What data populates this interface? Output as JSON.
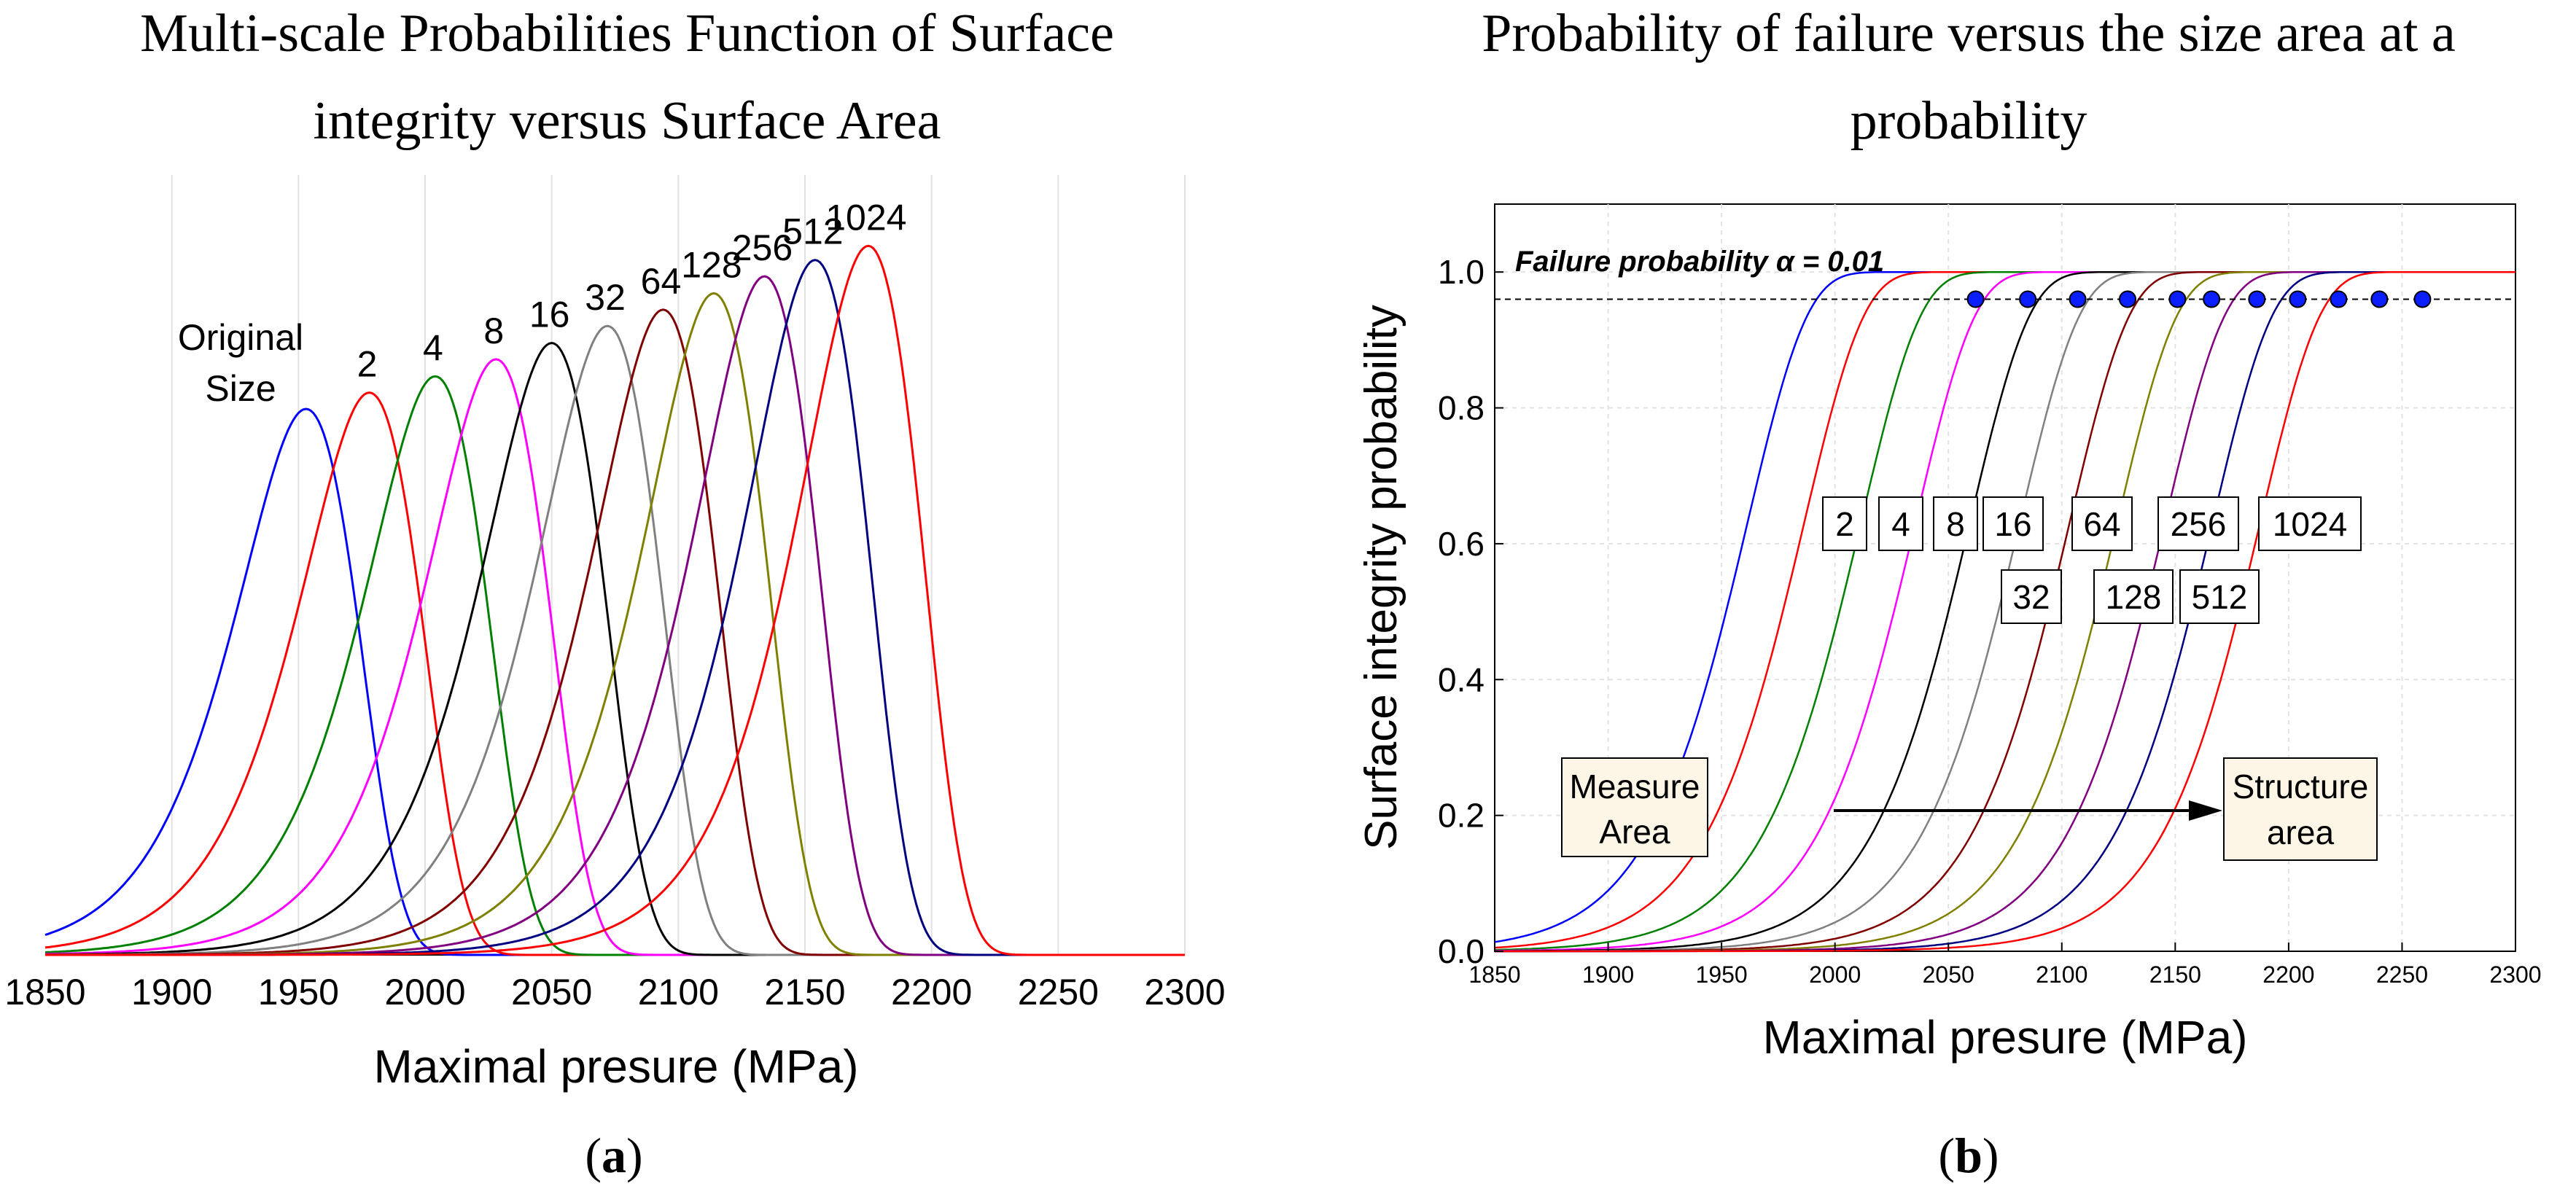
{
  "chart_data": [
    {
      "type": "line",
      "panel_label": "a",
      "title_lines": [
        "Multi-scale Probabilities Function of Surface",
        "integrity versus Surface Area"
      ],
      "xlabel": "Maximal presure (MPa)",
      "ylabel": "",
      "xlim": [
        1850,
        2300
      ],
      "ylim": [
        0,
        1.1
      ],
      "x_ticks": [
        1850,
        1900,
        1950,
        2000,
        2050,
        2100,
        2150,
        2200,
        2250,
        2300
      ],
      "grid": true,
      "annotation_original": [
        "Original",
        "Size"
      ],
      "series": [
        {
          "name": "Original Size",
          "label": "Original Size",
          "peak_x": 1953,
          "peak_y": 0.77,
          "color": "#0000ff"
        },
        {
          "name": "2",
          "label": "2",
          "peak_x": 1978,
          "peak_y": 0.793,
          "color": "#ff0000"
        },
        {
          "name": "4",
          "label": "4",
          "peak_x": 2004,
          "peak_y": 0.816,
          "color": "#008000"
        },
        {
          "name": "8",
          "label": "8",
          "peak_x": 2028,
          "peak_y": 0.84,
          "color": "#ff00ff"
        },
        {
          "name": "16",
          "label": "16",
          "peak_x": 2050,
          "peak_y": 0.863,
          "color": "#000000"
        },
        {
          "name": "32",
          "label": "32",
          "peak_x": 2072,
          "peak_y": 0.887,
          "color": "#808080"
        },
        {
          "name": "64",
          "label": "64",
          "peak_x": 2094,
          "peak_y": 0.91,
          "color": "#800000"
        },
        {
          "name": "128",
          "label": "128",
          "peak_x": 2114,
          "peak_y": 0.933,
          "color": "#808000"
        },
        {
          "name": "256",
          "label": "256",
          "peak_x": 2134,
          "peak_y": 0.957,
          "color": "#800080"
        },
        {
          "name": "512",
          "label": "512",
          "peak_x": 2154,
          "peak_y": 0.98,
          "color": "#000080"
        },
        {
          "name": "1024",
          "label": "1024",
          "peak_x": 2175,
          "peak_y": 1.0,
          "color": "#ff0000"
        }
      ]
    },
    {
      "type": "line",
      "panel_label": "b",
      "title_lines": [
        "Probability of failure versus the size area at a",
        "probability"
      ],
      "xlabel": "Maximal presure (MPa)",
      "ylabel": "Surface integrity probability",
      "xlim": [
        1850,
        2300
      ],
      "ylim": [
        0,
        1.1
      ],
      "x_ticks": [
        1850,
        1900,
        1950,
        2000,
        2050,
        2100,
        2150,
        2200,
        2250,
        2300
      ],
      "y_ticks": [
        "0.0",
        "0.2",
        "0.4",
        "0.6",
        "0.8",
        "1.0"
      ],
      "grid": true,
      "failure_annotation": "Failure probability α = 0.01",
      "failure_level": 0.96,
      "box_measure": [
        "Measure",
        "Area"
      ],
      "box_structure": [
        "Structure",
        "area"
      ],
      "size_labels_top": [
        "2",
        "4",
        "8",
        "16",
        "64",
        "256",
        "1024"
      ],
      "size_labels_bottom": [
        "32",
        "128",
        "512"
      ],
      "series": [
        {
          "name": "Original Size",
          "x50": 1952,
          "color": "#0000ff"
        },
        {
          "name": "2",
          "x50": 1977,
          "color": "#ff0000"
        },
        {
          "name": "4",
          "x50": 2002,
          "color": "#008000"
        },
        {
          "name": "8",
          "x50": 2026,
          "color": "#ff00ff"
        },
        {
          "name": "16",
          "x50": 2050,
          "color": "#000000"
        },
        {
          "name": "32",
          "x50": 2072,
          "color": "#808080"
        },
        {
          "name": "64",
          "x50": 2094,
          "color": "#800000"
        },
        {
          "name": "128",
          "x50": 2115,
          "color": "#808000"
        },
        {
          "name": "256",
          "x50": 2136,
          "color": "#800080"
        },
        {
          "name": "512",
          "x50": 2157,
          "color": "#000080"
        },
        {
          "name": "1024",
          "x50": 2178,
          "color": "#ff0000"
        }
      ],
      "failure_points_x": [
        2062,
        2085,
        2107,
        2129,
        2151,
        2166,
        2186,
        2204,
        2222,
        2240,
        2259
      ]
    }
  ]
}
